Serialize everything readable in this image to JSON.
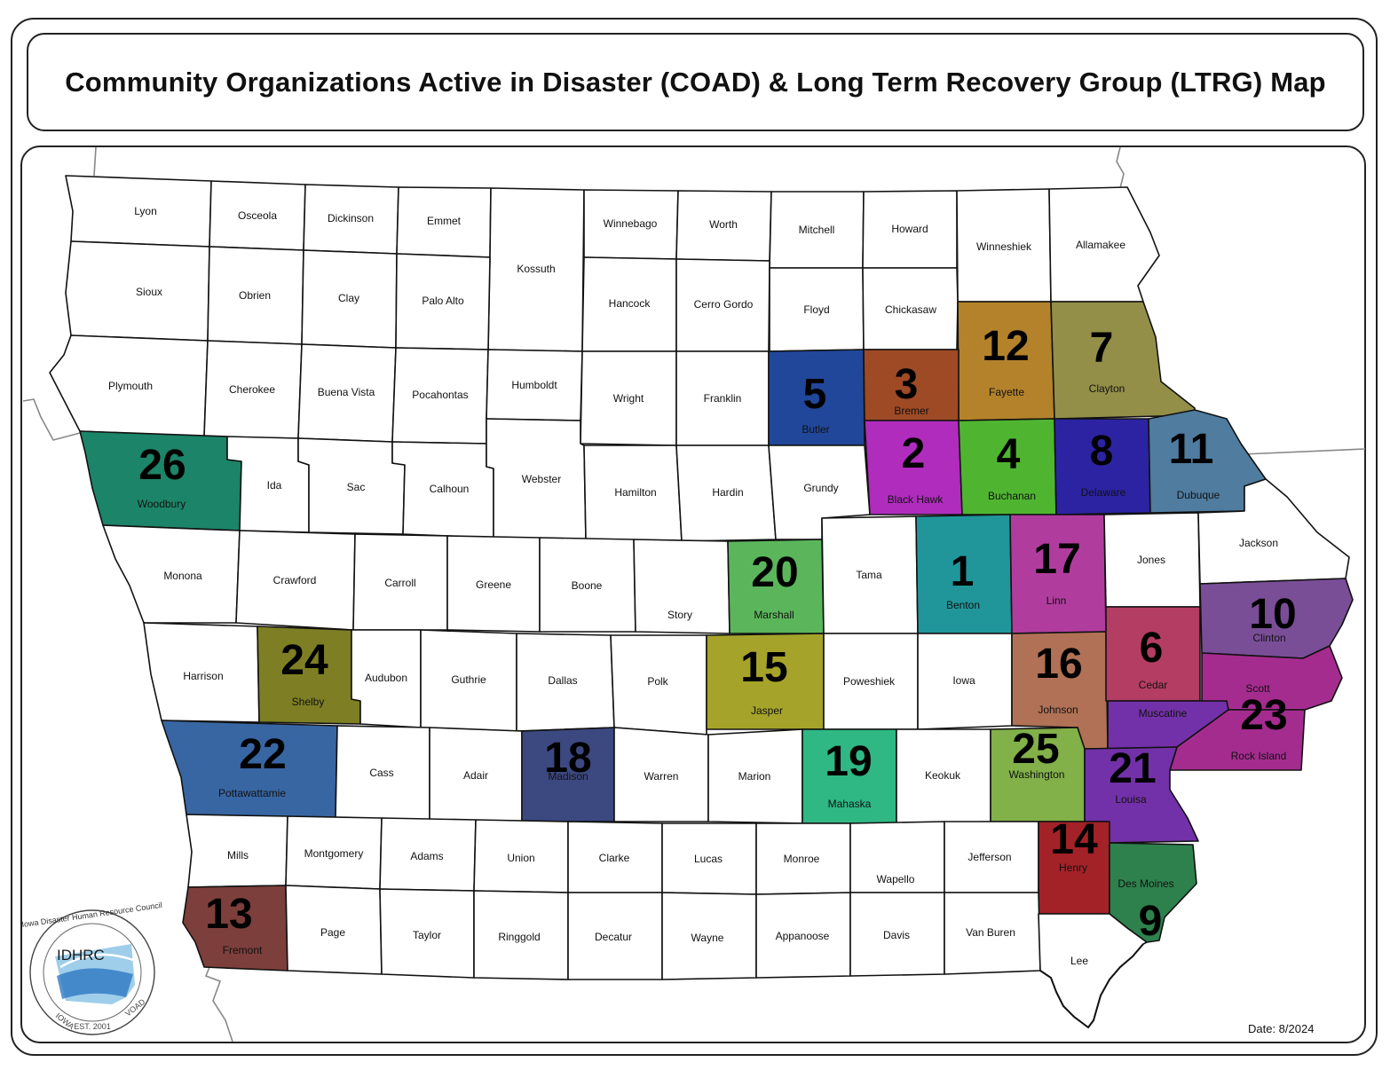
{
  "title": "Community Organizations Active in Disaster (COAD) & Long Term Recovery Group (LTRG) Map",
  "date": "Date: 8/2024",
  "logo": {
    "text": "IDHRC",
    "ring": "Iowa Disaster Human Resource Council",
    "state": "IOWA",
    "est": "EST. 2001",
    "voad": "VOAD"
  },
  "groups": [
    {
      "n": "1",
      "color": "#20969a"
    },
    {
      "n": "2",
      "color": "#b02cbd"
    },
    {
      "n": "3",
      "color": "#9e4a25"
    },
    {
      "n": "4",
      "color": "#4fb531"
    },
    {
      "n": "5",
      "color": "#21479a"
    },
    {
      "n": "6",
      "color": "#b43d64"
    },
    {
      "n": "7",
      "color": "#938f49"
    },
    {
      "n": "8",
      "color": "#2c23a3"
    },
    {
      "n": "9",
      "color": "#2e814d"
    },
    {
      "n": "10",
      "color": "#7a4e97"
    },
    {
      "n": "11",
      "color": "#4f7c9f"
    },
    {
      "n": "12",
      "color": "#b3822a"
    },
    {
      "n": "13",
      "color": "#7c3f3c"
    },
    {
      "n": "14",
      "color": "#a32228"
    },
    {
      "n": "15",
      "color": "#a6a32b"
    },
    {
      "n": "16",
      "color": "#b07156"
    },
    {
      "n": "17",
      "color": "#b03d9e"
    },
    {
      "n": "18",
      "color": "#3c4880"
    },
    {
      "n": "19",
      "color": "#2fb784"
    },
    {
      "n": "20",
      "color": "#5bb65b"
    },
    {
      "n": "21",
      "color": "#7231a8"
    },
    {
      "n": "22",
      "color": "#3866a3"
    },
    {
      "n": "23",
      "color": "#a52c8f"
    },
    {
      "n": "24",
      "color": "#7e7f24"
    },
    {
      "n": "25",
      "color": "#82b049"
    },
    {
      "n": "26",
      "color": "#1c8468"
    }
  ],
  "counties": [
    {
      "name": "Lyon",
      "group": null
    },
    {
      "name": "Osceola",
      "group": null
    },
    {
      "name": "Dickinson",
      "group": null
    },
    {
      "name": "Emmet",
      "group": null
    },
    {
      "name": "Kossuth",
      "group": null
    },
    {
      "name": "Winnebago",
      "group": null
    },
    {
      "name": "Worth",
      "group": null
    },
    {
      "name": "Mitchell",
      "group": null
    },
    {
      "name": "Howard",
      "group": null
    },
    {
      "name": "Winneshiek",
      "group": null
    },
    {
      "name": "Allamakee",
      "group": null
    },
    {
      "name": "Sioux",
      "group": null
    },
    {
      "name": "Obrien",
      "group": null
    },
    {
      "name": "Clay",
      "group": null
    },
    {
      "name": "Palo Alto",
      "group": null
    },
    {
      "name": "Hancock",
      "group": null
    },
    {
      "name": "Cerro Gordo",
      "group": null
    },
    {
      "name": "Floyd",
      "group": null
    },
    {
      "name": "Chickasaw",
      "group": null
    },
    {
      "name": "Fayette",
      "group": "12"
    },
    {
      "name": "Clayton",
      "group": "7"
    },
    {
      "name": "Plymouth",
      "group": null
    },
    {
      "name": "Cherokee",
      "group": null
    },
    {
      "name": "Buena Vista",
      "group": null
    },
    {
      "name": "Pocahontas",
      "group": null
    },
    {
      "name": "Humboldt",
      "group": null
    },
    {
      "name": "Wright",
      "group": null
    },
    {
      "name": "Franklin",
      "group": null
    },
    {
      "name": "Butler",
      "group": "5"
    },
    {
      "name": "Bremer",
      "group": "3"
    },
    {
      "name": "Woodbury",
      "group": "26"
    },
    {
      "name": "Ida",
      "group": null
    },
    {
      "name": "Sac",
      "group": null
    },
    {
      "name": "Calhoun",
      "group": null
    },
    {
      "name": "Webster",
      "group": null
    },
    {
      "name": "Hamilton",
      "group": null
    },
    {
      "name": "Hardin",
      "group": null
    },
    {
      "name": "Grundy",
      "group": null
    },
    {
      "name": "Black Hawk",
      "group": "2"
    },
    {
      "name": "Buchanan",
      "group": "4"
    },
    {
      "name": "Delaware",
      "group": "8"
    },
    {
      "name": "Dubuque",
      "group": "11"
    },
    {
      "name": "Monona",
      "group": null
    },
    {
      "name": "Crawford",
      "group": null
    },
    {
      "name": "Carroll",
      "group": null
    },
    {
      "name": "Greene",
      "group": null
    },
    {
      "name": "Boone",
      "group": null
    },
    {
      "name": "Story",
      "group": null
    },
    {
      "name": "Marshall",
      "group": "20"
    },
    {
      "name": "Tama",
      "group": null
    },
    {
      "name": "Benton",
      "group": "1"
    },
    {
      "name": "Linn",
      "group": "17"
    },
    {
      "name": "Jones",
      "group": null
    },
    {
      "name": "Jackson",
      "group": null
    },
    {
      "name": "Harrison",
      "group": null
    },
    {
      "name": "Shelby",
      "group": "24"
    },
    {
      "name": "Audubon",
      "group": null
    },
    {
      "name": "Guthrie",
      "group": null
    },
    {
      "name": "Dallas",
      "group": null
    },
    {
      "name": "Polk",
      "group": null
    },
    {
      "name": "Jasper",
      "group": "15"
    },
    {
      "name": "Poweshiek",
      "group": null
    },
    {
      "name": "Iowa",
      "group": null
    },
    {
      "name": "Johnson",
      "group": "16"
    },
    {
      "name": "Cedar",
      "group": "6"
    },
    {
      "name": "Clinton",
      "group": "10"
    },
    {
      "name": "Scott",
      "group": "23"
    },
    {
      "name": "Pottawattamie",
      "group": "22"
    },
    {
      "name": "Cass",
      "group": null
    },
    {
      "name": "Adair",
      "group": null
    },
    {
      "name": "Madison",
      "group": "18"
    },
    {
      "name": "Warren",
      "group": null
    },
    {
      "name": "Marion",
      "group": null
    },
    {
      "name": "Mahaska",
      "group": "19"
    },
    {
      "name": "Keokuk",
      "group": null
    },
    {
      "name": "Washington",
      "group": "25"
    },
    {
      "name": "Muscatine",
      "group": "21"
    },
    {
      "name": "Rock Island",
      "group": "23"
    },
    {
      "name": "Louisa",
      "group": "21"
    },
    {
      "name": "Mills",
      "group": null
    },
    {
      "name": "Montgomery",
      "group": null
    },
    {
      "name": "Adams",
      "group": null
    },
    {
      "name": "Union",
      "group": null
    },
    {
      "name": "Clarke",
      "group": null
    },
    {
      "name": "Lucas",
      "group": null
    },
    {
      "name": "Monroe",
      "group": null
    },
    {
      "name": "Wapello",
      "group": null
    },
    {
      "name": "Jefferson",
      "group": null
    },
    {
      "name": "Henry",
      "group": "14"
    },
    {
      "name": "Des Moines",
      "group": "9"
    },
    {
      "name": "Fremont",
      "group": "13"
    },
    {
      "name": "Page",
      "group": null
    },
    {
      "name": "Taylor",
      "group": null
    },
    {
      "name": "Ringgold",
      "group": null
    },
    {
      "name": "Decatur",
      "group": null
    },
    {
      "name": "Wayne",
      "group": null
    },
    {
      "name": "Appanoose",
      "group": null
    },
    {
      "name": "Davis",
      "group": null
    },
    {
      "name": "Van Buren",
      "group": null
    },
    {
      "name": "Lee",
      "group": null
    }
  ]
}
